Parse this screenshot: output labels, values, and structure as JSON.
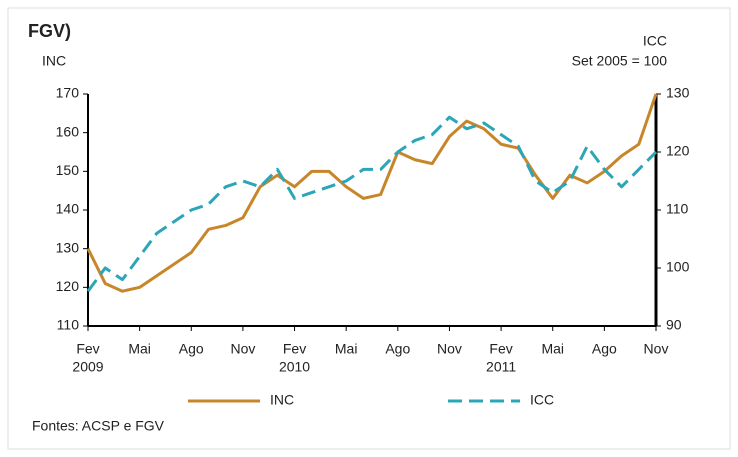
{
  "chart_data": {
    "type": "line",
    "title": "FGV)",
    "ylabel": "INC",
    "y2label": "ICC",
    "y2note": "Set 2005 = 100",
    "source": "Fontes:  ACSP e FGV",
    "categories": [
      "Fev",
      null,
      null,
      "Mai",
      null,
      null,
      "Ago",
      null,
      null,
      "Nov",
      null,
      null,
      "Fev",
      null,
      null,
      "Mai",
      null,
      null,
      "Ago",
      null,
      null,
      "Nov",
      null,
      null,
      "Fev",
      null,
      null,
      "Mai",
      null,
      null,
      "Ago",
      null,
      null,
      "Nov"
    ],
    "year_labels": [
      "2009",
      null,
      null,
      null,
      null,
      null,
      null,
      null,
      null,
      null,
      null,
      null,
      "2010",
      null,
      null,
      null,
      null,
      null,
      null,
      null,
      null,
      null,
      null,
      null,
      "2011",
      null,
      null,
      null,
      null,
      null,
      null,
      null,
      null,
      null
    ],
    "series": [
      {
        "name": "INC",
        "color": "#c8862b",
        "axis": "y",
        "dash": false,
        "values": [
          130,
          121,
          119,
          120,
          123,
          126,
          129,
          135,
          136,
          138,
          146,
          149,
          146,
          150,
          150,
          146,
          143,
          144,
          155,
          153,
          152,
          159,
          163,
          161,
          157,
          156,
          149,
          143,
          149,
          147,
          150,
          154,
          157,
          170
        ]
      },
      {
        "name": "ICC",
        "color": "#2aa6b8",
        "axis": "y2",
        "dash": true,
        "values": [
          96,
          100,
          98,
          102,
          106,
          108,
          110,
          111,
          114,
          115,
          114,
          117,
          112,
          113,
          114,
          115,
          117,
          117,
          120,
          122,
          123,
          126,
          124,
          125,
          123,
          121,
          115,
          113,
          115,
          121,
          117,
          114,
          117,
          120
        ]
      }
    ],
    "ylim": [
      110,
      170
    ],
    "yticks": [
      110,
      120,
      130,
      140,
      150,
      160,
      170
    ],
    "y2lim": [
      90,
      130
    ],
    "y2ticks": [
      90,
      100,
      110,
      120,
      130
    ],
    "grid": false
  }
}
